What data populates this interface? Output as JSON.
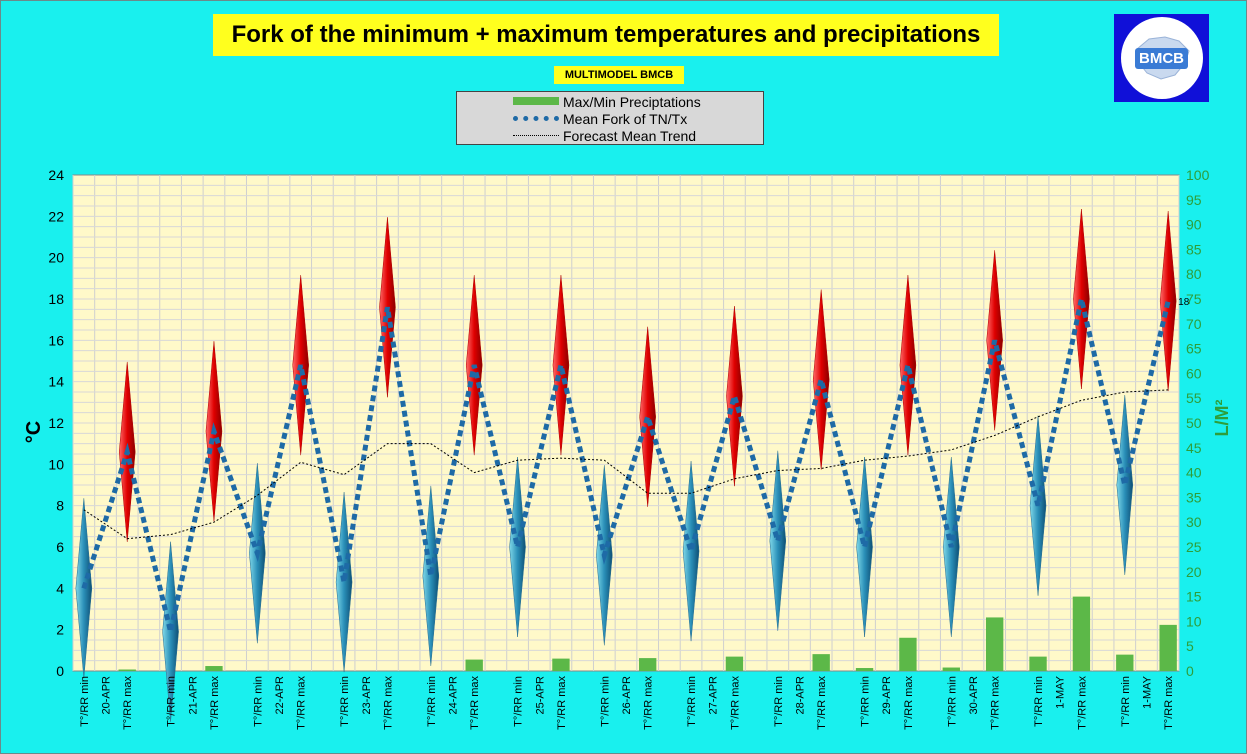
{
  "title": "Fork of the minimum + maximum temperatures and precipitations",
  "subtitle": "MULTIMODEL BMCB",
  "logo": {
    "text": "BMCB"
  },
  "legend": {
    "items": [
      {
        "label": "Max/Min Preciptations",
        "color": "#5cb848"
      },
      {
        "label": "Mean Fork of TN/Tx",
        "color": "#1e6aa6"
      },
      {
        "label": "Forecast Mean Trend",
        "color": "#000000"
      }
    ]
  },
  "chart_data": {
    "type": "line",
    "ylabel": "°C",
    "y2label": "L/M²",
    "ylim": [
      0,
      24
    ],
    "y_ticks": [
      0,
      2,
      4,
      6,
      8,
      10,
      12,
      14,
      16,
      18,
      20,
      22,
      24
    ],
    "y2lim": [
      0,
      100
    ],
    "y2_ticks": [
      0,
      5,
      10,
      15,
      20,
      25,
      30,
      35,
      40,
      45,
      50,
      55,
      60,
      65,
      70,
      75,
      80,
      85,
      90,
      95,
      100
    ],
    "grid": true,
    "x_tick_labels": [
      "T°/RR min",
      "20-APR",
      "T°/RR max",
      "",
      "T°/RR min",
      "21-APR",
      "T°/RR max",
      "",
      "T°/RR min",
      "22-APR",
      "T°/RR max",
      "",
      "T°/RR min",
      "23-APR",
      "T°/RR max",
      "",
      "T°/RR min",
      "24-APR",
      "T°/RR max",
      "",
      "T°/RR min",
      "25-APR",
      "T°/RR max",
      "",
      "T°/RR min",
      "26-APR",
      "T°/RR max",
      "",
      "T°/RR min",
      "27-APR",
      "T°/RR max",
      "",
      "T°/RR min",
      "28-APR",
      "T°/RR max",
      "",
      "T°/RR min",
      "29-APR",
      "T°/RR max",
      "",
      "T°/RR min",
      "30-APR",
      "T°/RR max",
      "",
      "T°/RR min",
      "1-MAY",
      "T°/RR max",
      "",
      "T°/RR min",
      "1-MAY",
      "T°/RR max"
    ],
    "series": [
      {
        "name": "Mean Fork of TN/Tx",
        "x_index": [
          0,
          2,
          4,
          6,
          8,
          10,
          12,
          14,
          16,
          18,
          20,
          22,
          24,
          26,
          28,
          30,
          32,
          34,
          36,
          38,
          40,
          42,
          44,
          46,
          48,
          50
        ],
        "values": [
          4.0,
          10.6,
          1.9,
          11.6,
          5.7,
          14.8,
          4.3,
          17.6,
          4.6,
          14.8,
          6.0,
          14.8,
          5.6,
          12.3,
          5.8,
          13.3,
          6.3,
          14.1,
          6.0,
          14.8,
          6.0,
          16.0,
          8.0,
          18.0,
          9.0,
          17.9
        ]
      },
      {
        "name": "Max/Min Preciptations",
        "x_index": [
          0,
          2,
          4,
          6,
          8,
          10,
          12,
          14,
          16,
          18,
          20,
          22,
          24,
          26,
          28,
          30,
          32,
          34,
          36,
          38,
          40,
          42,
          44,
          46,
          48,
          50
        ],
        "values": [
          0,
          0.3,
          0,
          1.0,
          0,
          0,
          0,
          0,
          0,
          2.3,
          0,
          2.5,
          0,
          2.6,
          0,
          2.9,
          0,
          3.4,
          0.6,
          6.7,
          0.7,
          10.8,
          2.9,
          15.0,
          3.3,
          9.3
        ]
      },
      {
        "name": "Forecast Mean Trend",
        "x_index": [
          0,
          2,
          4,
          6,
          8,
          10,
          12,
          14,
          16,
          18,
          20,
          22,
          24,
          26,
          28,
          30,
          32,
          34,
          36,
          38,
          40,
          42,
          44,
          46,
          48,
          50
        ],
        "values": [
          7.8,
          6.4,
          6.6,
          7.2,
          8.5,
          10.1,
          9.5,
          11.0,
          11.0,
          9.6,
          10.2,
          10.3,
          10.2,
          8.6,
          8.6,
          9.3,
          9.7,
          9.8,
          10.2,
          10.4,
          10.7,
          11.4,
          12.3,
          13.1,
          13.5,
          13.6
        ]
      }
    ],
    "data_labels": [
      {
        "x_index": 50,
        "text": "18"
      }
    ]
  }
}
